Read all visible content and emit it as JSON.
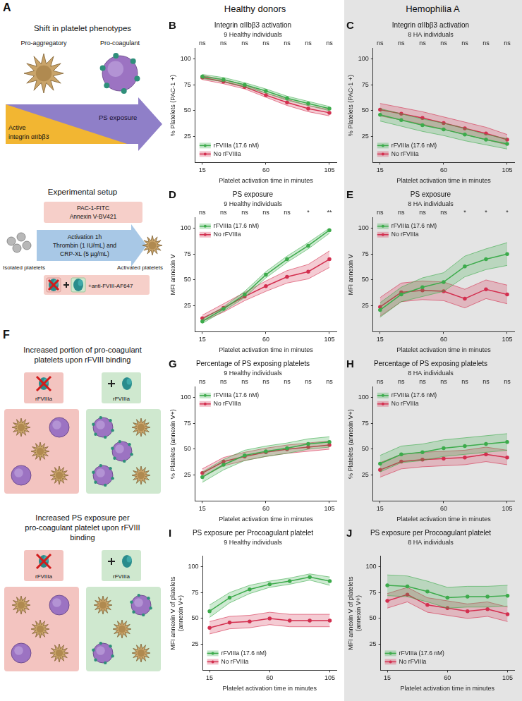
{
  "column_titles": [
    "Healthy donors",
    "Hemophilia A"
  ],
  "panel_a": {
    "label": "A",
    "title": "Shift in platelet phenotypes",
    "pro_aggregatory": "Pro-aggregatory",
    "pro_coagulant": "Pro-coagulant",
    "integrin": "Active integrin αIIbβ3",
    "ps": "PS exposure",
    "setup_title": "Experimental setup",
    "stains": [
      "PAC-1-FITC",
      "Annexin V-BV421"
    ],
    "isolated": "Isolated platelets",
    "activation": [
      "Activation 1h",
      "Thrombin (1 IU/mL) and",
      "CRP-XL (5 µg/mL)"
    ],
    "antibody": "+anti-FVIII-AF647",
    "activated": "Activated platelets"
  },
  "panel_f": {
    "label": "F",
    "headings": [
      "Increased portion of pro-coagulant platelets upon rFVIII binding",
      "Increased PS exposure per pro-coagulant platelet upon rFVIII binding"
    ],
    "icon_label": "rFVIIIa"
  },
  "chart_data": [
    {
      "type": "line",
      "panel": "B",
      "title": "Integrin αIIbβ3 activation",
      "subtitle": "9 Healthy individuals",
      "x_label": "Platelet activation time in minutes",
      "y_label": "% Platelets (PAC-1 +)",
      "x": [
        15,
        30,
        45,
        60,
        75,
        90,
        105
      ],
      "xlim": [
        10,
        110
      ],
      "xticks": [
        15,
        60,
        105
      ],
      "ylim": [
        0,
        110
      ],
      "yticks": [
        25,
        50,
        75,
        100
      ],
      "grid": false,
      "legend": "lower left",
      "significance": [
        "ns",
        "ns",
        "ns",
        "ns",
        "ns",
        "ns",
        "ns"
      ],
      "series": [
        {
          "name": "rFVIIIa (17.6 nM)",
          "color": "#3cab4b",
          "values": [
            83,
            80,
            75,
            69,
            62,
            57,
            52
          ],
          "lower": [
            81,
            78,
            73,
            67,
            60,
            55,
            50
          ],
          "upper": [
            85,
            82,
            77,
            71,
            64,
            59,
            54
          ]
        },
        {
          "name": "No rFVIIIa",
          "color": "#d32f4f",
          "values": [
            82,
            78,
            73,
            65,
            58,
            52,
            48
          ],
          "lower": [
            80,
            76,
            71,
            63,
            55,
            49,
            45
          ],
          "upper": [
            84,
            80,
            75,
            67,
            61,
            55,
            51
          ]
        }
      ]
    },
    {
      "type": "line",
      "panel": "C",
      "title": "Integrin αIIbβ3 activation",
      "subtitle": "8 HA individuals",
      "x_label": "Platelet activation time in minutes",
      "y_label": "% Platelets (PAC-1 +)",
      "x": [
        15,
        30,
        45,
        60,
        75,
        90,
        105
      ],
      "xlim": [
        10,
        110
      ],
      "xticks": [
        15,
        60,
        105
      ],
      "ylim": [
        0,
        110
      ],
      "yticks": [
        25,
        50,
        75,
        100
      ],
      "grid": false,
      "legend": "lower left",
      "significance": [
        "ns",
        "ns",
        "ns",
        "ns",
        "ns",
        "ns",
        "ns"
      ],
      "series": [
        {
          "name": "rFVIIIa (17.6 nM)",
          "color": "#3cab4b",
          "values": [
            46,
            41,
            36,
            32,
            27,
            22,
            18
          ],
          "lower": [
            40,
            35,
            30,
            26,
            21,
            17,
            13
          ],
          "upper": [
            52,
            47,
            42,
            38,
            33,
            27,
            23
          ]
        },
        {
          "name": "No rFVIIIa",
          "color": "#d32f4f",
          "values": [
            51,
            47,
            43,
            38,
            33,
            28,
            22
          ],
          "lower": [
            45,
            41,
            37,
            32,
            27,
            22,
            17
          ],
          "upper": [
            57,
            53,
            49,
            44,
            39,
            34,
            27
          ]
        }
      ]
    },
    {
      "type": "line",
      "panel": "D",
      "title": "PS exposure",
      "subtitle": "9 Healthy individuals",
      "x_label": "Platelet activation time in minutes",
      "y_label": "MFI annexin V",
      "x": [
        15,
        30,
        45,
        60,
        75,
        90,
        105
      ],
      "xlim": [
        10,
        110
      ],
      "xticks": [
        15,
        60,
        105
      ],
      "ylim": [
        0,
        110
      ],
      "yticks": [
        25,
        50,
        75,
        100
      ],
      "grid": false,
      "legend": "upper left",
      "significance": [
        "ns",
        "ns",
        "ns",
        "ns",
        "ns",
        "*",
        "**"
      ],
      "series": [
        {
          "name": "rFVIIIa (17.6 nM)",
          "color": "#3cab4b",
          "values": [
            10,
            22,
            36,
            55,
            70,
            83,
            98
          ],
          "lower": [
            8,
            20,
            33,
            52,
            67,
            80,
            95
          ],
          "upper": [
            12,
            24,
            39,
            58,
            73,
            86,
            100
          ]
        },
        {
          "name": "No rFVIIIa",
          "color": "#d32f4f",
          "values": [
            13,
            23,
            34,
            44,
            53,
            58,
            70
          ],
          "lower": [
            10,
            19,
            30,
            39,
            47,
            51,
            62
          ],
          "upper": [
            16,
            27,
            38,
            49,
            59,
            65,
            78
          ]
        }
      ]
    },
    {
      "type": "line",
      "panel": "E",
      "title": "PS exposure",
      "subtitle": "8 HA individuals",
      "x_label": "Platelet activation time in minutes",
      "y_label": "MFI annexin V",
      "x": [
        15,
        30,
        45,
        60,
        75,
        90,
        105
      ],
      "xlim": [
        10,
        110
      ],
      "xticks": [
        15,
        60,
        105
      ],
      "ylim": [
        0,
        110
      ],
      "yticks": [
        25,
        50,
        75,
        100
      ],
      "grid": false,
      "legend": "upper left",
      "significance": [
        "ns",
        "ns",
        "ns",
        "ns",
        "*",
        "*",
        "*"
      ],
      "series": [
        {
          "name": "rFVIIIa (17.6 nM)",
          "color": "#3cab4b",
          "values": [
            21,
            36,
            43,
            48,
            63,
            70,
            75
          ],
          "lower": [
            14,
            29,
            34,
            39,
            53,
            60,
            64
          ],
          "upper": [
            28,
            43,
            52,
            57,
            73,
            80,
            86
          ]
        },
        {
          "name": "No rFVIIIa",
          "color": "#d32f4f",
          "values": [
            24,
            38,
            40,
            39,
            32,
            41,
            36
          ],
          "lower": [
            15,
            29,
            31,
            30,
            23,
            32,
            27
          ],
          "upper": [
            33,
            47,
            49,
            48,
            41,
            50,
            45
          ]
        }
      ]
    },
    {
      "type": "line",
      "panel": "G",
      "title": "Percentage of PS exposing platelets",
      "subtitle": "9 Healthy individuals",
      "x_label": "Platelet activation time in minutes",
      "y_label": "% Platelets (annexin V+)",
      "x": [
        15,
        30,
        45,
        60,
        75,
        90,
        105
      ],
      "xlim": [
        10,
        110
      ],
      "xticks": [
        15,
        60,
        105
      ],
      "ylim": [
        0,
        110
      ],
      "yticks": [
        25,
        50,
        75,
        100
      ],
      "grid": false,
      "legend": "upper left",
      "significance": [
        "ns",
        "ns",
        "ns",
        "ns",
        "ns",
        "ns",
        "ns"
      ],
      "series": [
        {
          "name": "rFVIIIa (17.6 nM)",
          "color": "#3cab4b",
          "values": [
            23,
            35,
            44,
            48,
            51,
            55,
            57
          ],
          "lower": [
            18,
            30,
            39,
            43,
            46,
            50,
            52
          ],
          "upper": [
            28,
            40,
            49,
            53,
            56,
            60,
            62
          ]
        },
        {
          "name": "No rFVIIIa",
          "color": "#d32f4f",
          "values": [
            27,
            38,
            43,
            47,
            50,
            52,
            54
          ],
          "lower": [
            23,
            34,
            39,
            43,
            46,
            48,
            50
          ],
          "upper": [
            31,
            42,
            47,
            51,
            54,
            56,
            58
          ]
        }
      ]
    },
    {
      "type": "line",
      "panel": "H",
      "title": "Percentage of PS exposing platelets",
      "subtitle": "8 HA individuals",
      "x_label": "Platelet activation time in minutes",
      "y_label": "% Platelets (annexin V+)",
      "x": [
        15,
        30,
        45,
        60,
        75,
        90,
        105
      ],
      "xlim": [
        10,
        110
      ],
      "xticks": [
        15,
        60,
        105
      ],
      "ylim": [
        0,
        110
      ],
      "yticks": [
        25,
        50,
        75,
        100
      ],
      "grid": false,
      "legend": "upper left",
      "significance": [
        "ns",
        "ns",
        "ns",
        "ns",
        "ns",
        "ns",
        "ns"
      ],
      "series": [
        {
          "name": "rFVIIIa (17.6 nM)",
          "color": "#3cab4b",
          "values": [
            36,
            45,
            47,
            51,
            53,
            55,
            57
          ],
          "lower": [
            28,
            37,
            39,
            43,
            45,
            47,
            49
          ],
          "upper": [
            44,
            53,
            55,
            59,
            61,
            63,
            65
          ]
        },
        {
          "name": "No rFVIIIa",
          "color": "#d32f4f",
          "values": [
            30,
            38,
            40,
            41,
            42,
            45,
            42
          ],
          "lower": [
            23,
            31,
            33,
            34,
            35,
            38,
            35
          ],
          "upper": [
            37,
            45,
            47,
            48,
            49,
            52,
            49
          ]
        }
      ]
    },
    {
      "type": "line",
      "panel": "I",
      "title": "PS exposure per Procoagulant platelet",
      "subtitle": "9 Healthy individuals",
      "x_label": "Platelet activation time in minutes",
      "y_label": "MFI annexin V of platelets (annexin V+)",
      "x": [
        15,
        30,
        45,
        60,
        75,
        90,
        105
      ],
      "xlim": [
        10,
        110
      ],
      "xticks": [
        15,
        60,
        105
      ],
      "ylim": [
        0,
        110
      ],
      "yticks": [
        25,
        50,
        75,
        100
      ],
      "grid": false,
      "legend": "lower left",
      "series": [
        {
          "name": "rFVIIIa (17.6 nM)",
          "color": "#3cab4b",
          "values": [
            57,
            70,
            78,
            83,
            86,
            90,
            86
          ],
          "lower": [
            51,
            65,
            74,
            80,
            83,
            87,
            82
          ],
          "upper": [
            63,
            75,
            82,
            86,
            89,
            93,
            90
          ]
        },
        {
          "name": "No rFVIIIa",
          "color": "#d32f4f",
          "values": [
            41,
            46,
            47,
            50,
            48,
            48,
            48
          ],
          "lower": [
            35,
            40,
            41,
            44,
            42,
            42,
            42
          ],
          "upper": [
            47,
            52,
            53,
            56,
            54,
            54,
            54
          ]
        }
      ]
    },
    {
      "type": "line",
      "panel": "J",
      "title": "PS exposure per Procoagulant platelet",
      "subtitle": "8 HA individuals",
      "x_label": "Platelet activation time in minutes",
      "y_label": "MFI annexin V of platelets (annexin V+)",
      "x": [
        15,
        30,
        45,
        60,
        75,
        90,
        105
      ],
      "xlim": [
        10,
        110
      ],
      "xticks": [
        15,
        60,
        105
      ],
      "ylim": [
        0,
        110
      ],
      "yticks": [
        25,
        50,
        75,
        100
      ],
      "grid": false,
      "legend": "lower left",
      "series": [
        {
          "name": "rFVIIIa (17.6 nM)",
          "color": "#3cab4b",
          "values": [
            82,
            81,
            76,
            70,
            71,
            71,
            72
          ],
          "lower": [
            72,
            71,
            66,
            60,
            61,
            61,
            62
          ],
          "upper": [
            92,
            91,
            86,
            80,
            81,
            81,
            82
          ]
        },
        {
          "name": "No rFVIIIa",
          "color": "#d32f4f",
          "values": [
            67,
            73,
            63,
            60,
            57,
            59,
            54
          ],
          "lower": [
            60,
            66,
            56,
            53,
            50,
            52,
            47
          ],
          "upper": [
            74,
            80,
            70,
            67,
            64,
            66,
            61
          ]
        }
      ]
    }
  ]
}
